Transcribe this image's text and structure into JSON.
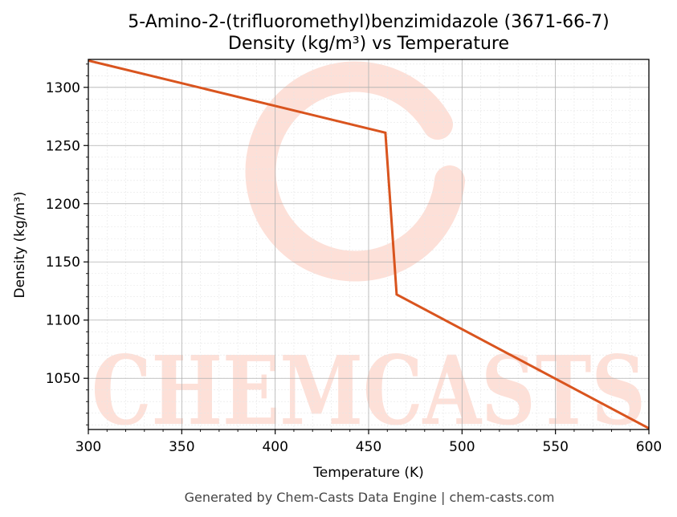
{
  "chart_data": {
    "type": "line",
    "title": "5-Amino-2-(trifluoromethyl)benzimidazole (3671-66-7)",
    "subtitle": "Density (kg/m³) vs Temperature",
    "xlabel": "Temperature (K)",
    "ylabel": "Density (kg/m³)",
    "xlim": [
      300,
      600
    ],
    "ylim": [
      1006,
      1324
    ],
    "x_ticks": [
      300,
      350,
      400,
      450,
      500,
      550,
      600
    ],
    "y_ticks": [
      1050,
      1100,
      1150,
      1200,
      1250,
      1300
    ],
    "grid": true,
    "series": [
      {
        "color": "#d9541e",
        "points": [
          [
            300,
            1323
          ],
          [
            459,
            1261
          ],
          [
            465,
            1122
          ],
          [
            600,
            1007
          ]
        ]
      }
    ]
  },
  "watermark": {
    "text": "CHEMCASTS",
    "color": "#fde0d8"
  },
  "footer": "Generated by Chem-Casts Data Engine | chem-casts.com"
}
